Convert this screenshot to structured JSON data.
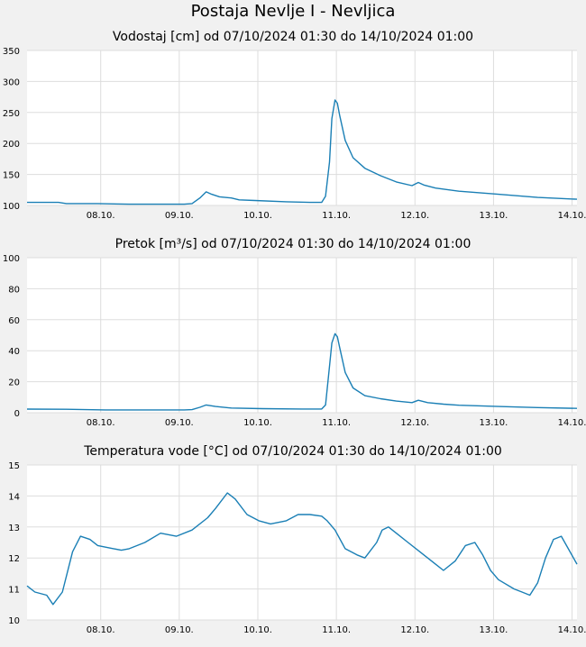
{
  "main_title": "Postaja Nevlje I - Nevljica",
  "colors": {
    "line": "#1a7fb5",
    "plot_bg": "#ffffff",
    "page_bg": "#f1f1f1",
    "grid": "#dddddd"
  },
  "chart_data": [
    {
      "type": "line",
      "title": "Vodostaj [cm] od 07/10/2024 01:30 do 14/10/2024 01:00",
      "xlabel": "",
      "ylabel": "",
      "xlim": [
        0,
        7.0
      ],
      "ylim": [
        100,
        350
      ],
      "yticks": [
        100,
        150,
        200,
        250,
        300,
        350
      ],
      "xticks": [
        {
          "pos": 0.9375,
          "label": "08.10."
        },
        {
          "pos": 1.9375,
          "label": "09.10."
        },
        {
          "pos": 2.9375,
          "label": "10.10."
        },
        {
          "pos": 3.9375,
          "label": "11.10."
        },
        {
          "pos": 4.9375,
          "label": "12.10."
        },
        {
          "pos": 5.9375,
          "label": "13.10."
        },
        {
          "pos": 6.9375,
          "label": "14.10."
        }
      ],
      "grid": true,
      "series": [
        {
          "x": [
            0,
            0.4,
            0.5,
            0.9,
            1.3,
            1.7,
            2.0,
            2.1,
            2.2,
            2.28,
            2.35,
            2.45,
            2.6,
            2.7,
            2.9,
            3.3,
            3.6,
            3.75,
            3.8,
            3.85,
            3.88,
            3.92,
            3.95,
            3.98,
            4.05,
            4.15,
            4.3,
            4.5,
            4.7,
            4.9,
            4.98,
            5.05,
            5.2,
            5.5,
            6.0,
            6.5,
            7.0
          ],
          "y": [
            105,
            105,
            103,
            103,
            102,
            102,
            102,
            103,
            112,
            122,
            118,
            114,
            112,
            109,
            108,
            106,
            105,
            105,
            115,
            170,
            240,
            270,
            265,
            245,
            205,
            177,
            160,
            148,
            138,
            132,
            137,
            133,
            128,
            123,
            118,
            113,
            110
          ]
        }
      ]
    },
    {
      "type": "line",
      "title": "Pretok [m³/s] od 07/10/2024 01:30 do 14/10/2024 01:00",
      "xlabel": "",
      "ylabel": "",
      "xlim": [
        0,
        7.0
      ],
      "ylim": [
        0,
        100
      ],
      "yticks": [
        0,
        20,
        40,
        60,
        80,
        100
      ],
      "xticks": [
        {
          "pos": 0.9375,
          "label": "08.10."
        },
        {
          "pos": 1.9375,
          "label": "09.10."
        },
        {
          "pos": 2.9375,
          "label": "10.10."
        },
        {
          "pos": 3.9375,
          "label": "11.10."
        },
        {
          "pos": 4.9375,
          "label": "12.10."
        },
        {
          "pos": 5.9375,
          "label": "13.10."
        },
        {
          "pos": 6.9375,
          "label": "14.10."
        }
      ],
      "grid": true,
      "series": [
        {
          "x": [
            0,
            0.5,
            1.0,
            1.5,
            2.0,
            2.1,
            2.2,
            2.28,
            2.4,
            2.6,
            3.0,
            3.5,
            3.75,
            3.8,
            3.85,
            3.88,
            3.92,
            3.95,
            3.98,
            4.05,
            4.15,
            4.3,
            4.5,
            4.7,
            4.9,
            4.98,
            5.1,
            5.3,
            5.5,
            6.0,
            6.5,
            7.0
          ],
          "y": [
            2.3,
            2.2,
            1.8,
            1.8,
            1.8,
            2.0,
            3.5,
            5.0,
            4.0,
            3.0,
            2.6,
            2.4,
            2.4,
            5,
            30,
            45,
            51,
            49,
            42,
            26,
            16,
            11,
            9,
            7.5,
            6.5,
            8,
            6.5,
            5.5,
            4.8,
            4.0,
            3.3,
            2.8
          ]
        }
      ]
    },
    {
      "type": "line",
      "title": "Temperatura vode [°C] od 07/10/2024 01:30 do 14/10/2024 01:00",
      "xlabel": "",
      "ylabel": "",
      "xlim": [
        0,
        7.0
      ],
      "ylim": [
        10,
        15
      ],
      "yticks": [
        10,
        11,
        12,
        13,
        14,
        15
      ],
      "xticks": [
        {
          "pos": 0.9375,
          "label": "08.10."
        },
        {
          "pos": 1.9375,
          "label": "09.10."
        },
        {
          "pos": 2.9375,
          "label": "10.10."
        },
        {
          "pos": 3.9375,
          "label": "11.10."
        },
        {
          "pos": 4.9375,
          "label": "12.10."
        },
        {
          "pos": 5.9375,
          "label": "13.10."
        },
        {
          "pos": 6.9375,
          "label": "14.10."
        }
      ],
      "grid": true,
      "series": [
        {
          "x": [
            0,
            0.1,
            0.25,
            0.33,
            0.45,
            0.58,
            0.68,
            0.8,
            0.9,
            1.0,
            1.1,
            1.2,
            1.3,
            1.5,
            1.7,
            1.9,
            2.1,
            2.3,
            2.4,
            2.55,
            2.65,
            2.8,
            2.95,
            3.1,
            3.3,
            3.45,
            3.6,
            3.75,
            3.82,
            3.92,
            4.05,
            4.2,
            4.3,
            4.45,
            4.52,
            4.6,
            4.7,
            4.85,
            5.0,
            5.1,
            5.2,
            5.3,
            5.45,
            5.58,
            5.7,
            5.8,
            5.9,
            6.0,
            6.2,
            6.3,
            6.4,
            6.5,
            6.6,
            6.7,
            6.8,
            7.0
          ],
          "y": [
            11.1,
            10.9,
            10.8,
            10.5,
            10.9,
            12.2,
            12.7,
            12.6,
            12.4,
            12.35,
            12.3,
            12.25,
            12.3,
            12.5,
            12.8,
            12.7,
            12.9,
            13.3,
            13.6,
            14.1,
            13.9,
            13.4,
            13.2,
            13.1,
            13.2,
            13.4,
            13.4,
            13.35,
            13.2,
            12.9,
            12.3,
            12.1,
            12.0,
            12.5,
            12.9,
            13.0,
            12.8,
            12.5,
            12.2,
            12.0,
            11.8,
            11.6,
            11.9,
            12.4,
            12.5,
            12.1,
            11.6,
            11.3,
            11.0,
            10.9,
            10.8,
            11.2,
            12.0,
            12.6,
            12.7,
            11.8
          ]
        }
      ]
    }
  ]
}
